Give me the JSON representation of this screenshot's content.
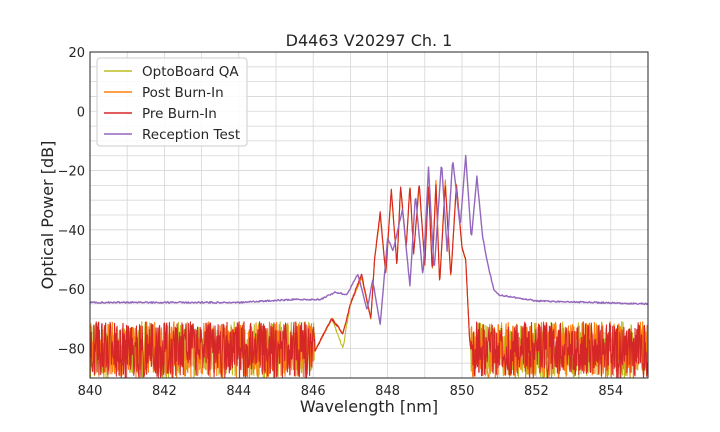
{
  "chart_data": {
    "type": "line",
    "title": "D4463 V20297 Ch. 1",
    "xlabel": "Wavelength [nm]",
    "ylabel": "Optical Power [dB]",
    "xlim": [
      840,
      855
    ],
    "ylim": [
      -90,
      20
    ],
    "xticks": [
      840,
      842,
      844,
      846,
      848,
      850,
      852,
      854
    ],
    "yticks": [
      -80,
      -60,
      -40,
      -20,
      0,
      20
    ],
    "xtick_labels": [
      "840",
      "842",
      "844",
      "846",
      "848",
      "850",
      "852",
      "854"
    ],
    "ytick_labels": [
      "−80",
      "−60",
      "−40",
      "−20",
      "0",
      "20"
    ],
    "grid": true,
    "legend_position": "top-left",
    "noise_floor_range": [
      -90,
      -71
    ],
    "series": [
      {
        "name": "OptoBoard QA",
        "color": "#bcbd22",
        "x": [
          840.0,
          846.0,
          846.5,
          846.8,
          847.0,
          847.3,
          847.55,
          847.65,
          847.8,
          847.95,
          848.1,
          848.25,
          848.35,
          848.5,
          848.6,
          848.7,
          848.85,
          849.0,
          849.1,
          849.2,
          849.3,
          849.4,
          849.55,
          849.7,
          849.85,
          850.0,
          850.1,
          850.2,
          850.25,
          855.0
        ],
        "y": [
          -82,
          -82,
          -70,
          -80,
          -65,
          -56,
          -70,
          -50,
          -35,
          -55,
          -27,
          -52,
          -26,
          -46,
          -25,
          -48,
          -25,
          -52,
          -25,
          -54,
          -24,
          -58,
          -24,
          -56,
          -25,
          -46,
          -50,
          -76,
          -82,
          -82
        ]
      },
      {
        "name": "Post Burn-In",
        "color": "#ff7f0e",
        "x": [
          840.0,
          846.0,
          846.5,
          846.8,
          847.0,
          847.3,
          847.55,
          847.65,
          847.8,
          847.95,
          848.1,
          848.25,
          848.35,
          848.5,
          848.6,
          848.7,
          848.85,
          849.0,
          849.1,
          849.2,
          849.3,
          849.4,
          849.55,
          849.7,
          849.85,
          850.0,
          850.1,
          850.2,
          850.25,
          855.0
        ],
        "y": [
          -82,
          -82,
          -70,
          -75,
          -65,
          -56,
          -70,
          -50,
          -35,
          -55,
          -27,
          -52,
          -26,
          -46,
          -25,
          -48,
          -25,
          -52,
          -24,
          -54,
          -23,
          -58,
          -23,
          -56,
          -24,
          -46,
          -50,
          -76,
          -82,
          -82
        ]
      },
      {
        "name": "Pre Burn-In",
        "color": "#d62728",
        "x": [
          840.0,
          846.0,
          846.5,
          846.8,
          847.0,
          847.3,
          847.55,
          847.65,
          847.8,
          847.95,
          848.1,
          848.25,
          848.35,
          848.5,
          848.6,
          848.7,
          848.85,
          849.0,
          849.1,
          849.2,
          849.3,
          849.4,
          849.55,
          849.7,
          849.85,
          850.0,
          850.1,
          850.2,
          850.25,
          855.0
        ],
        "y": [
          -82,
          -82,
          -70,
          -75,
          -65,
          -55,
          -70,
          -50,
          -34,
          -55,
          -26,
          -52,
          -25,
          -46,
          -25,
          -48,
          -24,
          -52,
          -25,
          -54,
          -25,
          -58,
          -25,
          -56,
          -25,
          -46,
          -50,
          -76,
          -82,
          -82
        ]
      },
      {
        "name": "Reception Test",
        "color": "#9467bd",
        "x": [
          840.0,
          844.0,
          845.5,
          846.2,
          846.6,
          846.9,
          847.2,
          847.45,
          847.6,
          847.8,
          848.0,
          848.15,
          848.4,
          848.6,
          848.75,
          848.95,
          849.1,
          849.25,
          849.45,
          849.6,
          849.75,
          849.95,
          850.1,
          850.25,
          850.4,
          850.55,
          850.7,
          850.85,
          851.0,
          852.0,
          855.0
        ],
        "y": [
          -64.5,
          -64.5,
          -63.5,
          -63.5,
          -61,
          -62,
          -55,
          -67,
          -57,
          -72,
          -43,
          -47,
          -33,
          -59,
          -28,
          -56,
          -19,
          -54,
          -17,
          -47,
          -16,
          -39,
          -15,
          -43,
          -22,
          -42,
          -52,
          -60,
          -62,
          -64,
          -65
        ]
      }
    ]
  }
}
